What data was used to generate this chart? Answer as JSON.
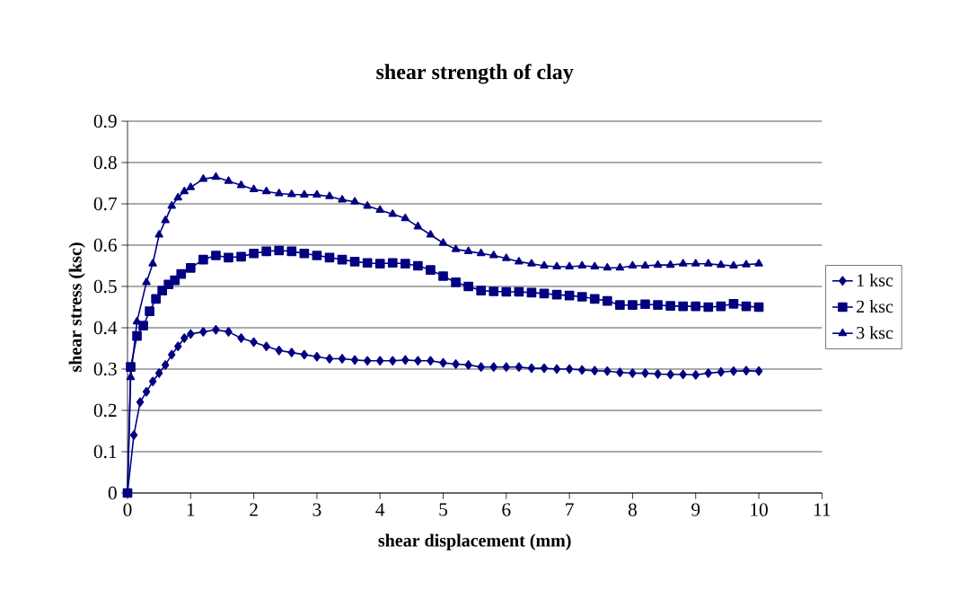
{
  "chart_data": {
    "type": "line",
    "title": "shear strength of clay",
    "xlabel": "shear displacement (mm)",
    "ylabel": "shear stress (ksc)",
    "xlim": [
      0,
      11
    ],
    "xticks": [
      0,
      1,
      2,
      3,
      4,
      5,
      6,
      7,
      8,
      9,
      10,
      11
    ],
    "ylim": [
      0,
      0.9
    ],
    "yticks": [
      0,
      0.1,
      0.2,
      0.3,
      0.4,
      0.5,
      0.6,
      0.7,
      0.8,
      0.9
    ],
    "grid": "y",
    "legend": "right",
    "line_style": "solid",
    "series": [
      {
        "name": "1 ksc",
        "color": "#000080",
        "marker": "diamond",
        "x": [
          0,
          0.1,
          0.2,
          0.3,
          0.4,
          0.5,
          0.6,
          0.7,
          0.8,
          0.9,
          1.0,
          1.2,
          1.4,
          1.6,
          1.8,
          2.0,
          2.2,
          2.4,
          2.6,
          2.8,
          3.0,
          3.2,
          3.4,
          3.6,
          3.8,
          4.0,
          4.2,
          4.4,
          4.6,
          4.8,
          5.0,
          5.2,
          5.4,
          5.6,
          5.8,
          6.0,
          6.2,
          6.4,
          6.6,
          6.8,
          7.0,
          7.2,
          7.4,
          7.6,
          7.8,
          8.0,
          8.2,
          8.4,
          8.6,
          8.8,
          9.0,
          9.2,
          9.4,
          9.6,
          9.8,
          10
        ],
        "values": [
          0,
          0.14,
          0.22,
          0.245,
          0.27,
          0.29,
          0.31,
          0.335,
          0.355,
          0.375,
          0.385,
          0.39,
          0.395,
          0.39,
          0.375,
          0.365,
          0.355,
          0.345,
          0.34,
          0.335,
          0.33,
          0.325,
          0.325,
          0.322,
          0.32,
          0.32,
          0.32,
          0.322,
          0.32,
          0.32,
          0.315,
          0.312,
          0.31,
          0.305,
          0.305,
          0.305,
          0.305,
          0.302,
          0.302,
          0.3,
          0.3,
          0.298,
          0.296,
          0.295,
          0.292,
          0.29,
          0.29,
          0.288,
          0.287,
          0.287,
          0.286,
          0.29,
          0.293,
          0.295,
          0.296,
          0.295
        ]
      },
      {
        "name": "2 ksc",
        "color": "#000080",
        "marker": "square",
        "x": [
          0,
          0.05,
          0.15,
          0.25,
          0.35,
          0.45,
          0.55,
          0.65,
          0.75,
          0.85,
          1.0,
          1.2,
          1.4,
          1.6,
          1.8,
          2.0,
          2.2,
          2.4,
          2.6,
          2.8,
          3.0,
          3.2,
          3.4,
          3.6,
          3.8,
          4.0,
          4.2,
          4.4,
          4.6,
          4.8,
          5.0,
          5.2,
          5.4,
          5.6,
          5.8,
          6.0,
          6.2,
          6.4,
          6.6,
          6.8,
          7.0,
          7.2,
          7.4,
          7.6,
          7.8,
          8.0,
          8.2,
          8.4,
          8.6,
          8.8,
          9.0,
          9.2,
          9.4,
          9.6,
          9.8,
          10
        ],
        "values": [
          0,
          0.305,
          0.38,
          0.405,
          0.44,
          0.47,
          0.49,
          0.505,
          0.515,
          0.53,
          0.545,
          0.565,
          0.575,
          0.57,
          0.572,
          0.58,
          0.585,
          0.587,
          0.585,
          0.58,
          0.575,
          0.57,
          0.565,
          0.56,
          0.557,
          0.555,
          0.557,
          0.555,
          0.55,
          0.54,
          0.525,
          0.51,
          0.5,
          0.49,
          0.488,
          0.487,
          0.487,
          0.485,
          0.483,
          0.48,
          0.478,
          0.475,
          0.47,
          0.465,
          0.455,
          0.455,
          0.457,
          0.455,
          0.453,
          0.452,
          0.452,
          0.45,
          0.452,
          0.458,
          0.452,
          0.45
        ]
      },
      {
        "name": "3 ksc",
        "color": "#000080",
        "marker": "triangle",
        "x": [
          0,
          0.05,
          0.15,
          0.3,
          0.4,
          0.5,
          0.6,
          0.7,
          0.8,
          0.9,
          1.0,
          1.2,
          1.4,
          1.6,
          1.8,
          2.0,
          2.2,
          2.4,
          2.6,
          2.8,
          3.0,
          3.2,
          3.4,
          3.6,
          3.8,
          4.0,
          4.2,
          4.4,
          4.6,
          4.8,
          5.0,
          5.2,
          5.4,
          5.6,
          5.8,
          6.0,
          6.2,
          6.4,
          6.6,
          6.8,
          7.0,
          7.2,
          7.4,
          7.6,
          7.8,
          8.0,
          8.2,
          8.4,
          8.6,
          8.8,
          9.0,
          9.2,
          9.4,
          9.6,
          9.8,
          10
        ],
        "values": [
          0,
          0.28,
          0.415,
          0.51,
          0.555,
          0.625,
          0.66,
          0.695,
          0.715,
          0.73,
          0.74,
          0.76,
          0.765,
          0.755,
          0.745,
          0.735,
          0.73,
          0.725,
          0.723,
          0.722,
          0.722,
          0.718,
          0.71,
          0.705,
          0.695,
          0.685,
          0.675,
          0.665,
          0.645,
          0.625,
          0.605,
          0.59,
          0.585,
          0.58,
          0.575,
          0.568,
          0.56,
          0.555,
          0.55,
          0.548,
          0.548,
          0.55,
          0.548,
          0.545,
          0.545,
          0.55,
          0.55,
          0.552,
          0.552,
          0.555,
          0.555,
          0.555,
          0.552,
          0.55,
          0.553,
          0.555
        ]
      }
    ]
  }
}
